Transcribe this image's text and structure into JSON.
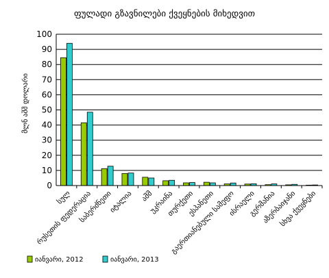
{
  "chart_data": {
    "type": "bar",
    "title": "ფულადი გზავნილები ქვეყნების მიხედვით",
    "ylabel": "მლნ აშშ დოლარი",
    "xlabel": "",
    "ylim": [
      0,
      100
    ],
    "yticks": [
      0,
      10,
      20,
      30,
      40,
      50,
      60,
      70,
      80,
      90,
      100
    ],
    "grid": true,
    "legend_position": "bottom-left",
    "categories": [
      "სულ",
      "რუსეთის ფედერაცია",
      "საბერძნეთი",
      "იტალია",
      "აშშ",
      "უკრაინა",
      "თურქეთი",
      "ესპანეთი",
      "გაერთიანებული სამეფო",
      "ისრაელი",
      "გერმანია",
      "აზერბაიჯანი",
      "სხვა ქვეყნები"
    ],
    "series": [
      {
        "name": "იანვარი, 2012",
        "color": "#99cc00",
        "values": [
          84.5,
          41.5,
          11.2,
          8.0,
          5.5,
          3.2,
          1.8,
          2.2,
          1.1,
          1.0,
          0.6,
          0.5,
          0.3
        ]
      },
      {
        "name": "იანვარი, 2013",
        "color": "#33cccc",
        "values": [
          94.0,
          48.5,
          12.8,
          8.3,
          5.0,
          3.5,
          2.0,
          1.8,
          1.7,
          1.2,
          1.1,
          0.8,
          0.4
        ]
      }
    ]
  }
}
